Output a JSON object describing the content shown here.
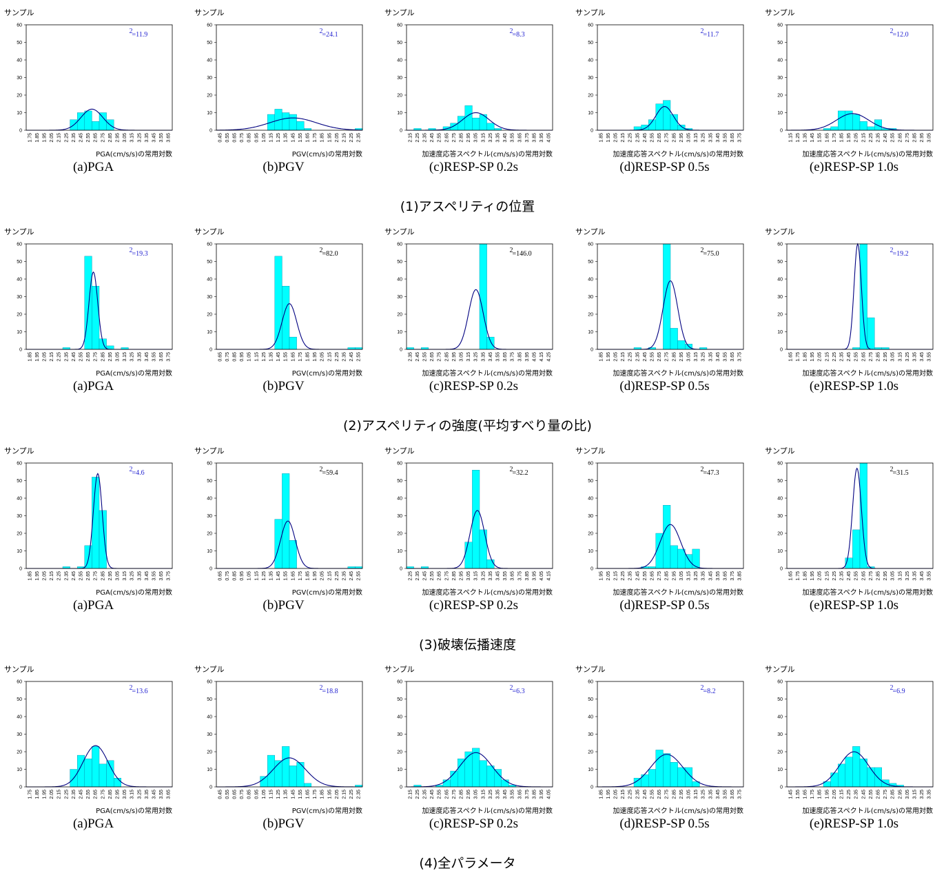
{
  "row_titles": [
    "(1)アスペリティの位置",
    "(2)アスペリティの強度(平均すべり量の比)",
    "(3)破壊伝播速度",
    "(4)全パラメータ"
  ],
  "colors": {
    "bar": "#00FFFF",
    "bar_edge": "#0088AA",
    "curve": "#000080",
    "chi_blue": "#1f1fd0",
    "chi_black": "#000000"
  },
  "chart_data": [
    {
      "type": "bar",
      "row": 1,
      "caption": "(a)PGA",
      "ylabel": "サンプル",
      "xlabel": "PGA(cm/s/s)の常用対数",
      "ylim": [
        0,
        60
      ],
      "yticks": [
        0,
        10,
        20,
        30,
        40,
        50,
        60
      ],
      "x_start": 1.75,
      "x_step": 0.1,
      "x_count": 20,
      "values": [
        0,
        0,
        0,
        0,
        0,
        0,
        6,
        10,
        11,
        5,
        10,
        6,
        0,
        0,
        0,
        0,
        0,
        0,
        0,
        0
      ],
      "fit": {
        "mean": 2.6,
        "sd": 0.15,
        "peak": 12
      },
      "chi2": "=11.9",
      "chi2_color": "blue"
    },
    {
      "type": "bar",
      "row": 1,
      "caption": "(b)PGV",
      "ylabel": "サンプル",
      "xlabel": "PGV(cm/s)の常用対数",
      "ylim": [
        0,
        60
      ],
      "yticks": [
        0,
        10,
        20,
        30,
        40,
        50,
        60
      ],
      "x_start": 0.45,
      "x_step": 0.1,
      "x_count": 20,
      "values": [
        0,
        0,
        0,
        0,
        0,
        0,
        0,
        9,
        12,
        10,
        9,
        5,
        1,
        0,
        0,
        0,
        0,
        0,
        0,
        1
      ],
      "fit": {
        "mean": 1.45,
        "sd": 0.32,
        "peak": 7
      },
      "chi2": "=24.1",
      "chi2_color": "blue"
    },
    {
      "type": "bar",
      "row": 1,
      "caption": "(c)RESP-SP 0.2s",
      "ylabel": "サンプル",
      "xlabel": "加速度応答スペクトル(cm/s/s)の常用対数",
      "ylim": [
        0,
        60
      ],
      "yticks": [
        0,
        10,
        20,
        30,
        40,
        50,
        60
      ],
      "x_start": 2.15,
      "x_step": 0.1,
      "x_count": 20,
      "values": [
        0,
        1,
        0,
        1,
        0,
        2,
        4,
        8,
        14,
        7,
        9,
        4,
        1,
        0,
        0,
        0,
        0,
        0,
        0,
        0
      ],
      "fit": {
        "mean": 3.05,
        "sd": 0.18,
        "peak": 10
      },
      "chi2": "=8.3",
      "chi2_color": "blue"
    },
    {
      "type": "bar",
      "row": 1,
      "caption": "(d)RESP-SP 0.5s",
      "ylabel": "サンプル",
      "xlabel": "加速度応答スペクトル(cm/s/s)の常用対数",
      "ylim": [
        0,
        60
      ],
      "yticks": [
        0,
        10,
        20,
        30,
        40,
        50,
        60
      ],
      "x_start": 1.85,
      "x_step": 0.1,
      "x_count": 20,
      "values": [
        0,
        0,
        0,
        0,
        0,
        2,
        3,
        6,
        15,
        17,
        9,
        3,
        1,
        0,
        0,
        0,
        0,
        0,
        0,
        0
      ],
      "fit": {
        "mean": 2.72,
        "sd": 0.12,
        "peak": 13.5
      },
      "chi2": "=11.7",
      "chi2_color": "blue"
    },
    {
      "type": "bar",
      "row": 1,
      "caption": "(e)RESP-SP 1.0s",
      "ylabel": "サンプル",
      "xlabel": "加速度応答スペクトル(cm/s/s)の常用対数",
      "ylim": [
        0,
        60
      ],
      "yticks": [
        0,
        10,
        20,
        30,
        40,
        50,
        60
      ],
      "x_start": 1.15,
      "x_step": 0.1,
      "x_count": 20,
      "values": [
        0,
        0,
        0,
        0,
        0,
        1,
        2,
        11,
        11,
        9,
        5,
        2,
        6,
        1,
        1,
        0,
        0,
        0,
        0,
        0
      ],
      "fit": {
        "mean": 2.0,
        "sd": 0.22,
        "peak": 9.5
      },
      "chi2": "=12.0",
      "chi2_color": "blue"
    },
    {
      "type": "bar",
      "row": 2,
      "caption": "(a)PGA",
      "ylabel": "サンプル",
      "xlabel": "PGA(cm/s/s)の常用対数",
      "ylim": [
        0,
        60
      ],
      "yticks": [
        0,
        10,
        20,
        30,
        40,
        50,
        60
      ],
      "x_start": 1.85,
      "x_step": 0.1,
      "x_count": 20,
      "values": [
        0,
        0,
        0,
        0,
        0,
        1,
        0,
        0,
        53,
        36,
        6,
        2,
        0,
        1,
        0,
        0,
        0,
        0,
        0,
        0
      ],
      "fit": {
        "mean": 2.72,
        "sd": 0.06,
        "peak": 44
      },
      "chi2": "=19.3",
      "chi2_color": "blue"
    },
    {
      "type": "bar",
      "row": 2,
      "caption": "(b)PGV",
      "ylabel": "サンプル",
      "xlabel": "PGV(cm/s)の常用対数",
      "ylim": [
        0,
        60
      ],
      "yticks": [
        0,
        10,
        20,
        30,
        40,
        50,
        60
      ],
      "x_start": 0.65,
      "x_step": 0.1,
      "x_count": 20,
      "values": [
        0,
        0,
        0,
        0,
        0,
        0,
        0,
        0,
        53,
        36,
        7,
        0,
        0,
        0,
        0,
        0,
        0,
        0,
        1,
        1
      ],
      "fit": {
        "mean": 1.6,
        "sd": 0.1,
        "peak": 26
      },
      "chi2": "=82.0",
      "chi2_color": "black"
    },
    {
      "type": "bar",
      "row": 2,
      "caption": "(c)RESP-SP 0.2s",
      "ylabel": "サンプル",
      "xlabel": "加速度応答スペクトル(cm/s/s)の常用対数",
      "ylim": [
        0,
        60
      ],
      "yticks": [
        0,
        10,
        20,
        30,
        40,
        50,
        60
      ],
      "x_start": 2.35,
      "x_step": 0.1,
      "x_count": 20,
      "values": [
        1,
        0,
        1,
        0,
        0,
        0,
        0,
        0,
        0,
        0,
        60,
        7,
        0,
        0,
        0,
        0,
        0,
        0,
        0,
        0
      ],
      "fit": {
        "mean": 3.25,
        "sd": 0.1,
        "peak": 34
      },
      "chi2": "=146.0",
      "chi2_color": "black"
    },
    {
      "type": "bar",
      "row": 2,
      "caption": "(d)RESP-SP 0.5s",
      "ylabel": "サンプル",
      "xlabel": "加速度応答スペクトル(cm/s/s)の常用対数",
      "ylim": [
        0,
        60
      ],
      "yticks": [
        0,
        10,
        20,
        30,
        40,
        50,
        60
      ],
      "x_start": 1.85,
      "x_step": 0.1,
      "x_count": 20,
      "values": [
        0,
        0,
        0,
        0,
        0,
        1,
        0,
        1,
        0,
        60,
        12,
        5,
        3,
        0,
        1,
        0,
        0,
        0,
        0,
        0
      ],
      "fit": {
        "mean": 2.8,
        "sd": 0.1,
        "peak": 39
      },
      "chi2": "=75.0",
      "chi2_color": "black"
    },
    {
      "type": "bar",
      "row": 2,
      "caption": "(e)RESP-SP 1.0s",
      "ylabel": "サンプル",
      "xlabel": "加速度応答スペクトル(cm/s/s)の常用対数",
      "ylim": [
        0,
        60
      ],
      "yticks": [
        0,
        10,
        20,
        30,
        40,
        50,
        60
      ],
      "x_start": 1.65,
      "x_step": 0.1,
      "x_count": 20,
      "values": [
        0,
        0,
        0,
        0,
        0,
        0,
        0,
        0,
        0,
        1,
        60,
        18,
        1,
        1,
        0,
        0,
        0,
        0,
        0,
        0
      ],
      "fit": {
        "mean": 2.57,
        "sd": 0.05,
        "peak": 60
      },
      "chi2": "=19.2",
      "chi2_color": "blue"
    },
    {
      "type": "bar",
      "row": 3,
      "caption": "(a)PGA",
      "ylabel": "サンプル",
      "xlabel": "PGA(cm/s/s)の常用対数",
      "ylim": [
        0,
        60
      ],
      "yticks": [
        0,
        10,
        20,
        30,
        40,
        50,
        60
      ],
      "x_start": 1.85,
      "x_step": 0.1,
      "x_count": 20,
      "values": [
        0,
        0,
        0,
        0,
        0,
        1,
        0,
        1,
        13,
        52,
        33,
        0,
        0,
        0,
        0,
        0,
        0,
        0,
        0,
        0
      ],
      "fit": {
        "mean": 2.78,
        "sd": 0.06,
        "peak": 54
      },
      "chi2": "=4.6",
      "chi2_color": "blue"
    },
    {
      "type": "bar",
      "row": 3,
      "caption": "(b)PGV",
      "ylabel": "サンプル",
      "xlabel": "PGV(cm/s)の常用対数",
      "ylim": [
        0,
        60
      ],
      "yticks": [
        0,
        10,
        20,
        30,
        40,
        50,
        60
      ],
      "x_start": 0.65,
      "x_step": 0.1,
      "x_count": 20,
      "values": [
        0,
        0,
        0,
        0,
        0,
        0,
        0,
        0,
        28,
        54,
        16,
        0,
        0,
        0,
        0,
        0,
        0,
        0,
        1,
        1
      ],
      "fit": {
        "mean": 1.58,
        "sd": 0.1,
        "peak": 27
      },
      "chi2": "=59.4",
      "chi2_color": "black"
    },
    {
      "type": "bar",
      "row": 3,
      "caption": "(c)RESP-SP 0.2s",
      "ylabel": "サンプル",
      "xlabel": "加速度応答スペクトル(cm/s/s)の常用対数",
      "ylim": [
        0,
        60
      ],
      "yticks": [
        0,
        10,
        20,
        30,
        40,
        50,
        60
      ],
      "x_start": 2.25,
      "x_step": 0.1,
      "x_count": 20,
      "values": [
        1,
        0,
        1,
        0,
        0,
        0,
        0,
        0,
        15,
        56,
        22,
        5,
        0,
        0,
        0,
        0,
        0,
        0,
        0,
        0
      ],
      "fit": {
        "mean": 3.17,
        "sd": 0.1,
        "peak": 33
      },
      "chi2": "=32.2",
      "chi2_color": "black"
    },
    {
      "type": "bar",
      "row": 3,
      "caption": "(d)RESP-SP 0.5s",
      "ylabel": "サンプル",
      "xlabel": "加速度応答スペクトル(cm/s/s)の常用対数",
      "ylim": [
        0,
        60
      ],
      "yticks": [
        0,
        10,
        20,
        30,
        40,
        50,
        60
      ],
      "x_start": 1.95,
      "x_step": 0.1,
      "x_count": 20,
      "values": [
        0,
        0,
        0,
        0,
        0,
        0,
        1,
        1,
        20,
        36,
        13,
        11,
        8,
        11,
        0,
        0,
        0,
        0,
        0,
        0
      ],
      "fit": {
        "mean": 2.9,
        "sd": 0.14,
        "peak": 25
      },
      "chi2": "=47.3",
      "chi2_color": "black"
    },
    {
      "type": "bar",
      "row": 3,
      "caption": "(e)RESP-SP 1.0s",
      "ylabel": "サンプル",
      "xlabel": "加速度応答スペクトル(cm/s/s)の常用対数",
      "ylim": [
        0,
        60
      ],
      "yticks": [
        0,
        10,
        20,
        30,
        40,
        50,
        60
      ],
      "x_start": 1.65,
      "x_step": 0.1,
      "x_count": 20,
      "values": [
        0,
        0,
        0,
        0,
        0,
        0,
        0,
        0,
        6,
        22,
        60,
        1,
        0,
        0,
        0,
        0,
        0,
        0,
        0,
        0
      ],
      "fit": {
        "mean": 2.56,
        "sd": 0.06,
        "peak": 57
      },
      "chi2": "=31.5",
      "chi2_color": "black"
    },
    {
      "type": "bar",
      "row": 4,
      "caption": "(a)PGA",
      "ylabel": "サンプル",
      "xlabel": "PGA(cm/s/s)の常用対数",
      "ylim": [
        0,
        60
      ],
      "yticks": [
        0,
        10,
        20,
        30,
        40,
        50,
        60
      ],
      "x_start": 1.75,
      "x_step": 0.1,
      "x_count": 20,
      "values": [
        0,
        0,
        0,
        0,
        0,
        0,
        10,
        18,
        16,
        23,
        13,
        15,
        5,
        0,
        0,
        0,
        0,
        0,
        0,
        0
      ],
      "fit": {
        "mean": 2.65,
        "sd": 0.17,
        "peak": 23.5
      },
      "chi2": "=13.6",
      "chi2_color": "blue"
    },
    {
      "type": "bar",
      "row": 4,
      "caption": "(b)PGV",
      "ylabel": "サンプル",
      "xlabel": "PGV(cm/s)の常用対数",
      "ylim": [
        0,
        60
      ],
      "yticks": [
        0,
        10,
        20,
        30,
        40,
        50,
        60
      ],
      "x_start": 0.45,
      "x_step": 0.1,
      "x_count": 20,
      "values": [
        0,
        0,
        0,
        0,
        0,
        0,
        6,
        18,
        15,
        23,
        12,
        14,
        2,
        0,
        0,
        0,
        0,
        0,
        0,
        1
      ],
      "fit": {
        "mean": 1.4,
        "sd": 0.22,
        "peak": 16.5
      },
      "chi2": "=18.8",
      "chi2_color": "blue"
    },
    {
      "type": "bar",
      "row": 4,
      "caption": "(c)RESP-SP 0.2s",
      "ylabel": "サンプル",
      "xlabel": "加速度応答スペクトル(cm/s/s)の常用対数",
      "ylim": [
        0,
        60
      ],
      "yticks": [
        0,
        10,
        20,
        30,
        40,
        50,
        60
      ],
      "x_start": 2.15,
      "x_step": 0.1,
      "x_count": 20,
      "values": [
        0,
        1,
        0,
        0,
        1,
        4,
        9,
        16,
        20,
        22,
        15,
        12,
        10,
        4,
        1,
        0,
        0,
        0,
        0,
        0
      ],
      "fit": {
        "mean": 3.05,
        "sd": 0.22,
        "peak": 19.5
      },
      "chi2": "=6.3",
      "chi2_color": "blue"
    },
    {
      "type": "bar",
      "row": 4,
      "caption": "(d)RESP-SP 0.5s",
      "ylabel": "サンプル",
      "xlabel": "加速度応答スペクトル(cm/s/s)の常用対数",
      "ylim": [
        0,
        60
      ],
      "yticks": [
        0,
        10,
        20,
        30,
        40,
        50,
        60
      ],
      "x_start": 1.85,
      "x_step": 0.1,
      "x_count": 20,
      "values": [
        0,
        0,
        0,
        0,
        0,
        5,
        7,
        10,
        21,
        19,
        14,
        11,
        11,
        3,
        0,
        0,
        0,
        0,
        0,
        0
      ],
      "fit": {
        "mean": 2.75,
        "sd": 0.22,
        "peak": 18.5
      },
      "chi2": "=8.2",
      "chi2_color": "blue"
    },
    {
      "type": "bar",
      "row": 4,
      "caption": "(e)RESP-SP 1.0s",
      "ylabel": "サンプル",
      "xlabel": "加速度応答スペクトル(cm/s/s)の常用対数",
      "ylim": [
        0,
        60
      ],
      "yticks": [
        0,
        10,
        20,
        30,
        40,
        50,
        60
      ],
      "x_start": 1.45,
      "x_step": 0.1,
      "x_count": 20,
      "values": [
        0,
        0,
        0,
        0,
        0,
        3,
        8,
        13,
        17,
        23,
        16,
        11,
        11,
        4,
        2,
        1,
        0,
        0,
        0,
        0
      ],
      "fit": {
        "mean": 2.32,
        "sd": 0.2,
        "peak": 20
      },
      "chi2": "=6.9",
      "chi2_color": "blue"
    }
  ]
}
